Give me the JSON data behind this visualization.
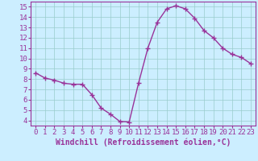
{
  "x": [
    0,
    1,
    2,
    3,
    4,
    5,
    6,
    7,
    8,
    9,
    10,
    11,
    12,
    13,
    14,
    15,
    16,
    17,
    18,
    19,
    20,
    21,
    22,
    23
  ],
  "y": [
    8.6,
    8.1,
    7.9,
    7.6,
    7.5,
    7.5,
    6.5,
    5.2,
    4.6,
    3.9,
    3.85,
    7.6,
    11.0,
    13.5,
    14.8,
    15.1,
    14.8,
    13.9,
    12.7,
    12.0,
    11.0,
    10.4,
    10.1,
    9.5
  ],
  "line_color": "#993399",
  "marker": "D",
  "marker_size": 2.2,
  "bg_color": "#cceeff",
  "grid_color": "#99cccc",
  "xlabel": "Windchill (Refroidissement éolien,°C)",
  "xlim": [
    -0.5,
    23.5
  ],
  "ylim": [
    3.5,
    15.5
  ],
  "xticks": [
    0,
    1,
    2,
    3,
    4,
    5,
    6,
    7,
    8,
    9,
    10,
    11,
    12,
    13,
    14,
    15,
    16,
    17,
    18,
    19,
    20,
    21,
    22,
    23
  ],
  "yticks": [
    4,
    5,
    6,
    7,
    8,
    9,
    10,
    11,
    12,
    13,
    14,
    15
  ],
  "tick_color": "#993399",
  "tick_fontsize": 6.5,
  "xlabel_fontsize": 7,
  "linewidth": 1.0
}
